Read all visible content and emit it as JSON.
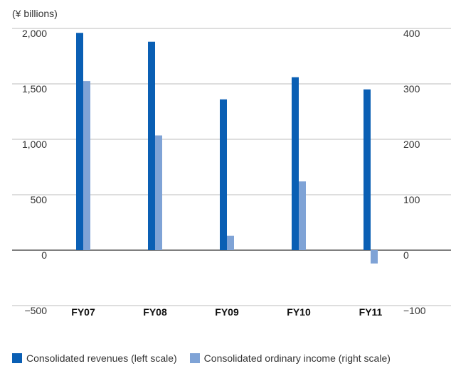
{
  "chart_data": {
    "type": "bar",
    "unit_label": "(¥ billions)",
    "categories": [
      "FY07",
      "FY08",
      "FY09",
      "FY10",
      "FY11"
    ],
    "series": [
      {
        "name": "Consolidated revenues (left scale)",
        "axis": "left",
        "color": "#0a5fb4",
        "values": [
          1960,
          1880,
          1360,
          1560,
          1450
        ]
      },
      {
        "name": "Consolidated ordinary income (right scale)",
        "axis": "right",
        "color": "#7fa3d6",
        "values": [
          305,
          207,
          26,
          124,
          -24
        ]
      }
    ],
    "left_axis": {
      "ylim": [
        -500,
        2000
      ],
      "ticks": [
        "2,000",
        "1,500",
        "1,000",
        "500",
        "0",
        "−500"
      ]
    },
    "right_axis": {
      "ylim": [
        -100,
        400
      ],
      "ticks": [
        "400",
        "300",
        "200",
        "100",
        "0",
        "−100"
      ]
    },
    "grid": true,
    "legend_position": "bottom"
  }
}
